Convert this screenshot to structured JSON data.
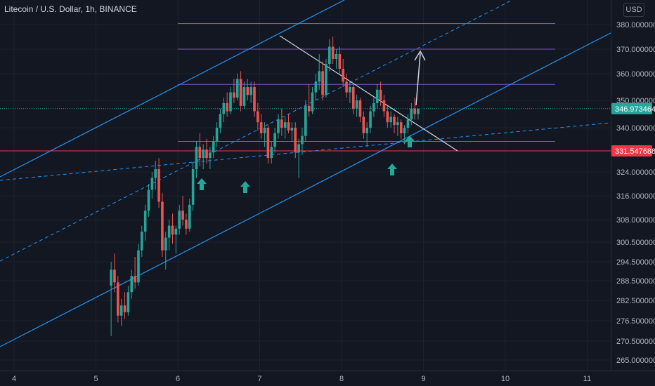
{
  "header": {
    "title": "Litecoin / U.S. Dollar, 1h, BINANCE"
  },
  "currency_button": "USD",
  "colors": {
    "background": "#131722",
    "up": "#26a69a",
    "down": "#ef5350",
    "channel": "#2196f3",
    "level": "#7e57c2",
    "support": "#f23645",
    "text": "#b2b5be"
  },
  "price_badges": [
    {
      "label": "346.973464",
      "color": "#26a69a"
    },
    {
      "label": "331.547688",
      "color": "#f23645"
    }
  ],
  "chart_data": {
    "type": "candlestick",
    "symbol": "Litecoin / U.S. Dollar",
    "interval": "1h",
    "exchange": "BINANCE",
    "ylim": [
      260,
      385
    ],
    "y_ticks": [
      "380.000000",
      "370.000000",
      "360.000000",
      "350.000000",
      "340.000000",
      "324.000000",
      "316.000000",
      "308.000000",
      "300.500000",
      "294.500000",
      "288.500000",
      "282.500000",
      "276.500000",
      "270.500000",
      "265.000000"
    ],
    "x_ticks": [
      "4",
      "5",
      "6",
      "7",
      "8",
      "9",
      "10",
      "11"
    ],
    "last_price": 346.973464,
    "support_level": 331.547688,
    "horizontal_levels": [
      381.5,
      370.0,
      356.0,
      335.0
    ],
    "candles_ohlc": [
      [
        287.0,
        294.5,
        272.0,
        292.0
      ],
      [
        292.0,
        297.0,
        285.0,
        288.0
      ],
      [
        288.0,
        290.0,
        276.0,
        278.0
      ],
      [
        278.0,
        283.0,
        275.0,
        281.0
      ],
      [
        281.0,
        285.0,
        277.0,
        279.0
      ],
      [
        279.0,
        287.0,
        278.0,
        285.0
      ],
      [
        285.0,
        292.0,
        283.0,
        290.0
      ],
      [
        290.0,
        296.0,
        286.0,
        288.0
      ],
      [
        288.0,
        300.0,
        287.0,
        298.0
      ],
      [
        298.0,
        306.0,
        296.0,
        304.0
      ],
      [
        304.0,
        313.0,
        301.0,
        311.0
      ],
      [
        311.0,
        320.0,
        309.0,
        318.0
      ],
      [
        318.0,
        324.0,
        315.0,
        322.0
      ],
      [
        322.0,
        328.0,
        318.0,
        325.0
      ],
      [
        325.0,
        329.0,
        312.0,
        314.0
      ],
      [
        314.0,
        317.0,
        296.0,
        298.0
      ],
      [
        298.0,
        304.0,
        292.0,
        302.0
      ],
      [
        302.0,
        308.0,
        298.0,
        306.0
      ],
      [
        306.0,
        310.0,
        300.0,
        303.0
      ],
      [
        303.0,
        306.0,
        297.0,
        305.0
      ],
      [
        305.0,
        313.0,
        303.0,
        311.0
      ],
      [
        311.0,
        316.0,
        306.0,
        308.0
      ],
      [
        308.0,
        310.0,
        303.0,
        305.0
      ],
      [
        305.0,
        315.0,
        304.0,
        313.0
      ],
      [
        313.0,
        327.0,
        311.0,
        325.0
      ],
      [
        325.0,
        335.0,
        322.0,
        333.0
      ],
      [
        333.0,
        338.0,
        326.0,
        329.0
      ],
      [
        329.0,
        334.0,
        325.0,
        332.0
      ],
      [
        332.0,
        336.0,
        327.0,
        329.0
      ],
      [
        329.0,
        333.0,
        325.0,
        331.0
      ],
      [
        331.0,
        337.0,
        329.0,
        335.0
      ],
      [
        335.0,
        342.0,
        333.0,
        340.0
      ],
      [
        340.0,
        347.0,
        338.0,
        345.0
      ],
      [
        345.0,
        351.0,
        342.0,
        349.0
      ],
      [
        349.0,
        353.0,
        344.0,
        346.0
      ],
      [
        346.0,
        355.0,
        345.0,
        353.0
      ],
      [
        353.0,
        358.0,
        349.0,
        351.0
      ],
      [
        351.0,
        360.0,
        350.0,
        358.0
      ],
      [
        358.0,
        361.0,
        346.0,
        348.0
      ],
      [
        348.0,
        357.0,
        347.0,
        355.0
      ],
      [
        355.0,
        358.0,
        350.0,
        352.0
      ],
      [
        352.0,
        357.0,
        349.0,
        355.0
      ],
      [
        355.0,
        357.0,
        344.0,
        346.0
      ],
      [
        346.0,
        349.0,
        339.0,
        342.0
      ],
      [
        342.0,
        345.0,
        336.0,
        338.0
      ],
      [
        338.0,
        342.0,
        333.0,
        340.0
      ],
      [
        340.0,
        341.0,
        327.0,
        329.0
      ],
      [
        329.0,
        335.0,
        327.0,
        333.0
      ],
      [
        333.0,
        340.0,
        331.0,
        338.0
      ],
      [
        338.0,
        345.0,
        336.0,
        343.0
      ],
      [
        343.0,
        347.0,
        337.0,
        340.0
      ],
      [
        340.0,
        344.0,
        336.0,
        342.0
      ],
      [
        342.0,
        345.0,
        338.0,
        339.0
      ],
      [
        339.0,
        342.0,
        335.0,
        340.0
      ],
      [
        340.0,
        342.0,
        329.0,
        331.0
      ],
      [
        331.0,
        336.0,
        322.0,
        334.0
      ],
      [
        334.0,
        340.0,
        330.0,
        337.0
      ],
      [
        337.0,
        350.0,
        335.0,
        348.0
      ],
      [
        348.0,
        356.0,
        344.0,
        346.0
      ],
      [
        346.0,
        355.0,
        345.0,
        353.0
      ],
      [
        353.0,
        360.0,
        350.0,
        357.0
      ],
      [
        357.0,
        368.0,
        354.0,
        361.0
      ],
      [
        361.0,
        365.0,
        350.0,
        352.0
      ],
      [
        352.0,
        366.0,
        351.0,
        364.0
      ],
      [
        364.0,
        374.0,
        361.0,
        371.0
      ],
      [
        371.0,
        375.0,
        364.0,
        366.0
      ],
      [
        366.0,
        370.0,
        362.0,
        368.0
      ],
      [
        368.0,
        371.0,
        360.0,
        362.0
      ],
      [
        362.0,
        366.0,
        355.0,
        357.0
      ],
      [
        357.0,
        360.0,
        351.0,
        353.0
      ],
      [
        353.0,
        357.0,
        349.0,
        355.0
      ],
      [
        355.0,
        356.0,
        345.0,
        347.0
      ],
      [
        347.0,
        352.0,
        344.0,
        350.0
      ],
      [
        350.0,
        351.0,
        342.0,
        344.0
      ],
      [
        344.0,
        346.0,
        336.0,
        338.0
      ],
      [
        338.0,
        342.0,
        333.0,
        340.0
      ],
      [
        340.0,
        348.0,
        338.0,
        346.0
      ],
      [
        346.0,
        351.0,
        344.0,
        349.0
      ],
      [
        349.0,
        356.0,
        347.0,
        354.0
      ],
      [
        354.0,
        357.0,
        348.0,
        350.0
      ],
      [
        350.0,
        352.0,
        344.0,
        346.0
      ],
      [
        346.0,
        348.0,
        340.0,
        342.0
      ],
      [
        342.0,
        346.0,
        340.0,
        344.0
      ],
      [
        344.0,
        345.0,
        338.0,
        341.0
      ],
      [
        341.0,
        344.0,
        337.0,
        342.0
      ],
      [
        342.0,
        343.0,
        336.0,
        338.0
      ],
      [
        338.0,
        341.0,
        334.0,
        340.0
      ],
      [
        340.0,
        345.0,
        338.0,
        343.0
      ],
      [
        343.0,
        349.0,
        341.0,
        347.0
      ],
      [
        347.0,
        351.0,
        343.0,
        345.0
      ],
      [
        345.0,
        347.0,
        343.0,
        346.973464
      ]
    ]
  },
  "markers": [
    {
      "name": "bounce-arrow-1"
    },
    {
      "name": "bounce-arrow-2"
    },
    {
      "name": "bounce-arrow-3"
    },
    {
      "name": "bounce-arrow-4"
    }
  ],
  "projection": {
    "target_level": 370.0
  }
}
